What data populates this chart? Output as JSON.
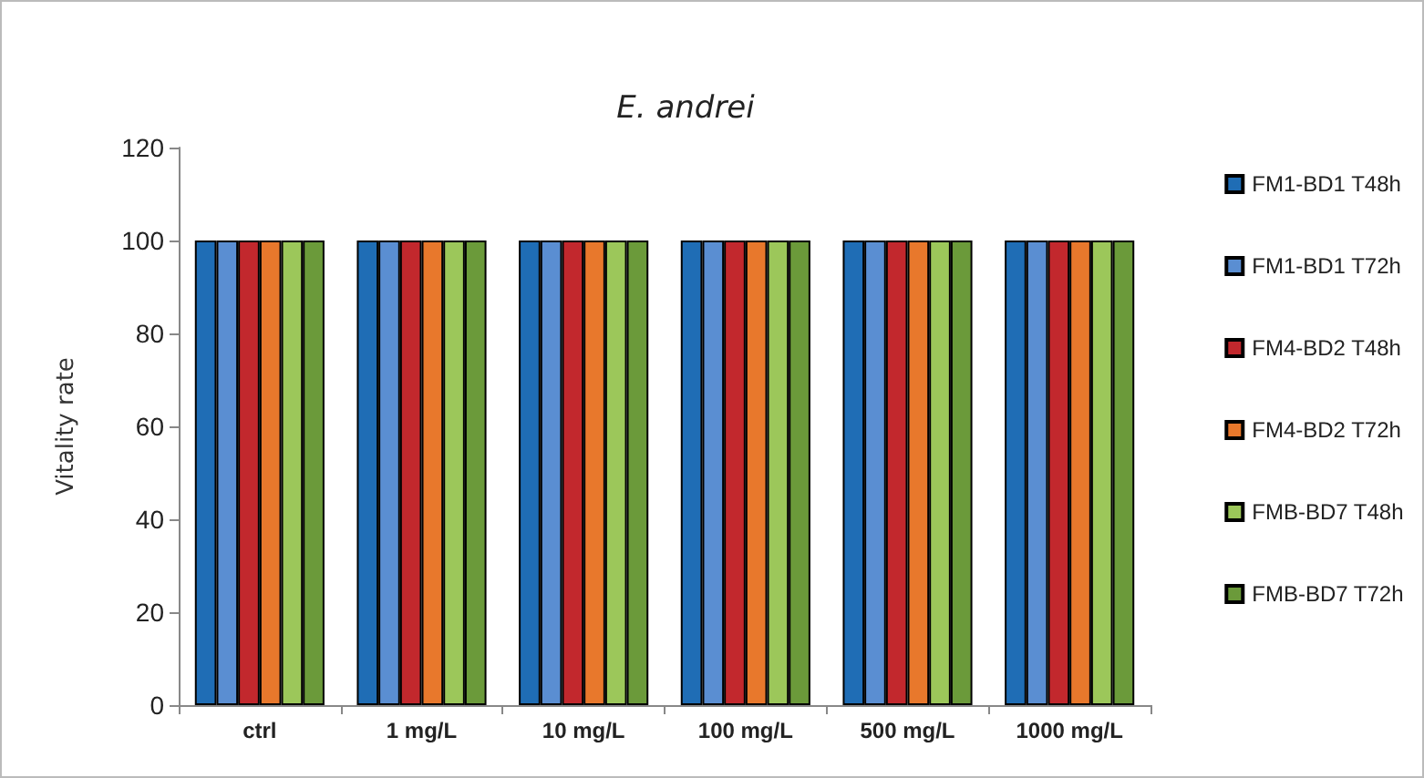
{
  "chart_data": {
    "type": "bar",
    "title": "E. andrei",
    "ylabel": "Vitality rate",
    "categories": [
      "ctrl",
      "1 mg/L",
      "10 mg/L",
      "100 mg/L",
      "500 mg/L",
      "1000 mg/L"
    ],
    "series": [
      {
        "name": "FM1-BD1 T48h",
        "color": "#1f6db5",
        "values": [
          100,
          100,
          100,
          100,
          100,
          100
        ]
      },
      {
        "name": "FM1-BD1 T72h",
        "color": "#5a8ed2",
        "values": [
          100,
          100,
          100,
          100,
          100,
          100
        ]
      },
      {
        "name": "FM4-BD2 T48h",
        "color": "#c2282d",
        "values": [
          100,
          100,
          100,
          100,
          100,
          100
        ]
      },
      {
        "name": "FM4-BD2 T72h",
        "color": "#e8782c",
        "values": [
          100,
          100,
          100,
          100,
          100,
          100
        ]
      },
      {
        "name": "FMB-BD7 T48h",
        "color": "#9cc75a",
        "values": [
          100,
          100,
          100,
          100,
          100,
          100
        ]
      },
      {
        "name": "FMB-BD7 T72h",
        "color": "#6b9a3a",
        "values": [
          100,
          100,
          100,
          100,
          100,
          100
        ]
      }
    ],
    "ylim": [
      0,
      120
    ],
    "yticks": [
      0,
      20,
      40,
      60,
      80,
      100,
      120
    ],
    "grid": false,
    "legend": "right"
  }
}
